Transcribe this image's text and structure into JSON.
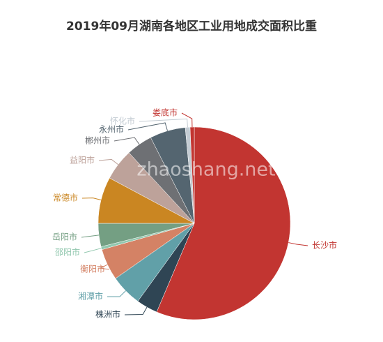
{
  "chart_data": {
    "type": "pie",
    "title": "2019年09月湖南各地区工业用地成交面积比重",
    "watermark": "zhaoshang.net",
    "categories": [
      "长沙市",
      "株洲市",
      "湘潭市",
      "衡阳市",
      "邵阳市",
      "岳阳市",
      "常德市",
      "益阳市",
      "郴州市",
      "永州市",
      "怀化市",
      "娄底市"
    ],
    "values": [
      56.4,
      3.6,
      5.3,
      5.3,
      0.5,
      3.9,
      7.8,
      5.3,
      4.4,
      6.0,
      0.8,
      0.7
    ],
    "colors": [
      "#c23531",
      "#2f4554",
      "#61a0a8",
      "#d48265",
      "#91c7ae",
      "#749f83",
      "#ca8622",
      "#bda29a",
      "#6e7074",
      "#546570",
      "#c4ccd3",
      "#c23531"
    ]
  }
}
